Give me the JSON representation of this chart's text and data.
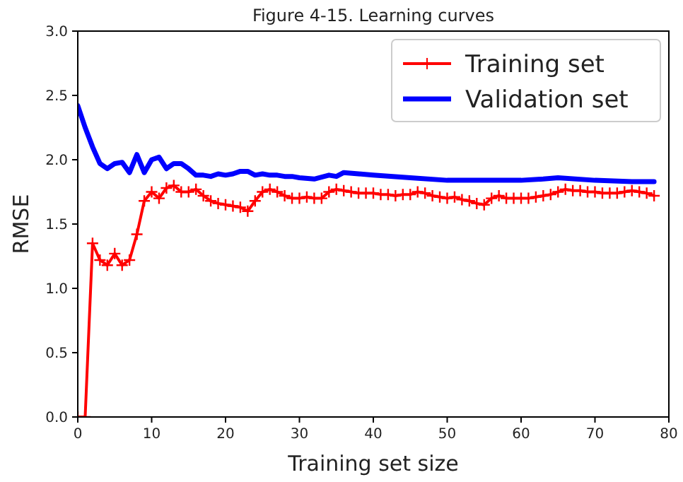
{
  "chart_data": {
    "type": "line",
    "title": "Figure 4-15. Learning curves",
    "xlabel": "Training set size",
    "ylabel": "RMSE",
    "xlim": [
      0,
      80
    ],
    "ylim": [
      0,
      3
    ],
    "xticks": [
      0,
      10,
      20,
      30,
      40,
      50,
      60,
      70,
      80
    ],
    "yticks": [
      {
        "value": 0,
        "label": "0.0"
      },
      {
        "value": 0.5,
        "label": "0.5"
      },
      {
        "value": 1,
        "label": "1.0"
      },
      {
        "value": 1.5,
        "label": "1.5"
      },
      {
        "value": 2,
        "label": "2.0"
      },
      {
        "value": 2.5,
        "label": "2.5"
      },
      {
        "value": 3,
        "label": "3.0"
      }
    ],
    "grid": false,
    "legend": "top right",
    "series": [
      {
        "name": "Training set",
        "color": "#ff0000",
        "marker": "cross",
        "x": [
          0,
          1,
          2,
          3,
          4,
          5,
          6,
          7,
          8,
          9,
          10,
          11,
          12,
          13,
          14,
          15,
          16,
          17,
          18,
          19,
          20,
          21,
          22,
          23,
          24,
          25,
          26,
          27,
          28,
          29,
          30,
          31,
          32,
          33,
          34,
          35,
          36,
          37,
          38,
          39,
          40,
          41,
          42,
          43,
          44,
          45,
          46,
          47,
          48,
          49,
          50,
          51,
          52,
          53,
          54,
          55,
          56,
          57,
          58,
          59,
          60,
          61,
          62,
          63,
          64,
          65,
          66,
          67,
          68,
          69,
          70,
          71,
          72,
          73,
          74,
          75,
          76,
          77,
          78
        ],
        "values": [
          0,
          0,
          1.35,
          1.22,
          1.18,
          1.27,
          1.18,
          1.22,
          1.42,
          1.68,
          1.75,
          1.7,
          1.78,
          1.8,
          1.75,
          1.75,
          1.77,
          1.72,
          1.68,
          1.66,
          1.65,
          1.64,
          1.63,
          1.6,
          1.68,
          1.75,
          1.77,
          1.75,
          1.72,
          1.7,
          1.7,
          1.71,
          1.7,
          1.7,
          1.75,
          1.77,
          1.76,
          1.75,
          1.74,
          1.74,
          1.74,
          1.73,
          1.73,
          1.72,
          1.73,
          1.73,
          1.75,
          1.74,
          1.72,
          1.71,
          1.7,
          1.71,
          1.69,
          1.68,
          1.66,
          1.65,
          1.7,
          1.72,
          1.7,
          1.7,
          1.7,
          1.7,
          1.71,
          1.72,
          1.73,
          1.75,
          1.77,
          1.76,
          1.76,
          1.75,
          1.75,
          1.74,
          1.74,
          1.74,
          1.75,
          1.76,
          1.75,
          1.74,
          1.72
        ]
      },
      {
        "name": "Validation set",
        "color": "#0000ff",
        "marker": "none",
        "x": [
          0,
          1,
          2,
          3,
          4,
          5,
          6,
          7,
          8,
          9,
          10,
          11,
          12,
          13,
          14,
          15,
          16,
          17,
          18,
          19,
          20,
          21,
          22,
          23,
          24,
          25,
          26,
          27,
          28,
          29,
          30,
          32,
          34,
          35,
          36,
          38,
          40,
          45,
          50,
          55,
          60,
          63,
          65,
          70,
          75,
          78
        ],
        "values": [
          2.42,
          2.25,
          2.1,
          1.97,
          1.93,
          1.97,
          1.98,
          1.9,
          2.04,
          1.9,
          2.0,
          2.02,
          1.93,
          1.97,
          1.97,
          1.93,
          1.88,
          1.88,
          1.87,
          1.89,
          1.88,
          1.89,
          1.91,
          1.91,
          1.88,
          1.89,
          1.88,
          1.88,
          1.87,
          1.87,
          1.86,
          1.85,
          1.88,
          1.87,
          1.9,
          1.89,
          1.88,
          1.86,
          1.84,
          1.84,
          1.84,
          1.85,
          1.86,
          1.84,
          1.83,
          1.83
        ]
      }
    ]
  }
}
